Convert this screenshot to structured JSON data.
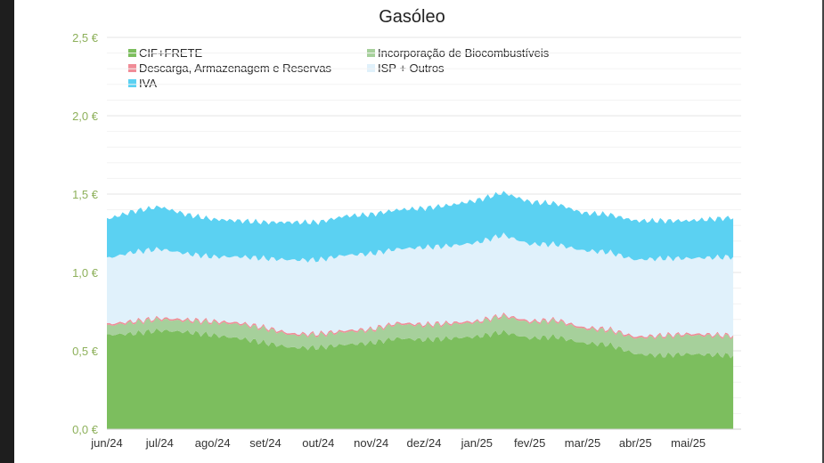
{
  "chart_data": {
    "type": "area",
    "title": "Gasóleo",
    "xlabel": "",
    "ylabel": "",
    "ylim": [
      0,
      2.5
    ],
    "yticks": [
      "0,0 €",
      "0,5 €",
      "1,0 €",
      "1,5 €",
      "2,0 €",
      "2,5 €"
    ],
    "grid": true,
    "legend_position": "top-left",
    "categories": [
      "jun/24",
      "jul/24",
      "ago/24",
      "set/24",
      "out/24",
      "nov/24",
      "dez/24",
      "jan/25",
      "fev/25",
      "mar/25",
      "abr/25",
      "mai/25"
    ],
    "x": [
      0,
      0.5,
      1,
      1.5,
      2,
      2.5,
      3,
      3.5,
      4,
      4.5,
      5,
      5.5,
      6,
      6.5,
      7,
      7.5,
      8,
      8.5,
      9,
      9.5,
      10,
      10.5,
      11,
      11.85
    ],
    "series": [
      {
        "name": "CIF+FRETE",
        "color": "#7cbe5e",
        "values": [
          0.6,
          0.61,
          0.63,
          0.62,
          0.6,
          0.58,
          0.55,
          0.52,
          0.52,
          0.54,
          0.55,
          0.58,
          0.57,
          0.58,
          0.59,
          0.62,
          0.58,
          0.59,
          0.55,
          0.54,
          0.48,
          0.47,
          0.48,
          0.47
        ]
      },
      {
        "name": "Incorporação de Biocombustíveis",
        "color": "#a6d09b",
        "values": [
          0.06,
          0.07,
          0.07,
          0.07,
          0.08,
          0.09,
          0.09,
          0.08,
          0.08,
          0.08,
          0.08,
          0.09,
          0.09,
          0.09,
          0.09,
          0.1,
          0.1,
          0.1,
          0.09,
          0.09,
          0.1,
          0.12,
          0.12,
          0.12
        ]
      },
      {
        "name": "Descarga, Armazenagem e Reservas",
        "color": "#f08c97",
        "values": [
          0.01,
          0.01,
          0.01,
          0.01,
          0.01,
          0.01,
          0.01,
          0.01,
          0.01,
          0.01,
          0.01,
          0.01,
          0.01,
          0.01,
          0.01,
          0.01,
          0.01,
          0.01,
          0.01,
          0.01,
          0.01,
          0.01,
          0.01,
          0.01
        ]
      },
      {
        "name": "ISP + Outros",
        "color": "#e0f1fb",
        "values": [
          0.42,
          0.44,
          0.44,
          0.42,
          0.41,
          0.42,
          0.44,
          0.47,
          0.47,
          0.48,
          0.48,
          0.47,
          0.49,
          0.49,
          0.5,
          0.51,
          0.49,
          0.48,
          0.49,
          0.49,
          0.49,
          0.49,
          0.48,
          0.5
        ]
      },
      {
        "name": "IVA",
        "color": "#5bd1f2",
        "values": [
          0.25,
          0.26,
          0.27,
          0.25,
          0.24,
          0.23,
          0.23,
          0.24,
          0.24,
          0.25,
          0.25,
          0.25,
          0.25,
          0.26,
          0.27,
          0.27,
          0.27,
          0.26,
          0.24,
          0.24,
          0.25,
          0.24,
          0.24,
          0.25
        ]
      }
    ]
  }
}
